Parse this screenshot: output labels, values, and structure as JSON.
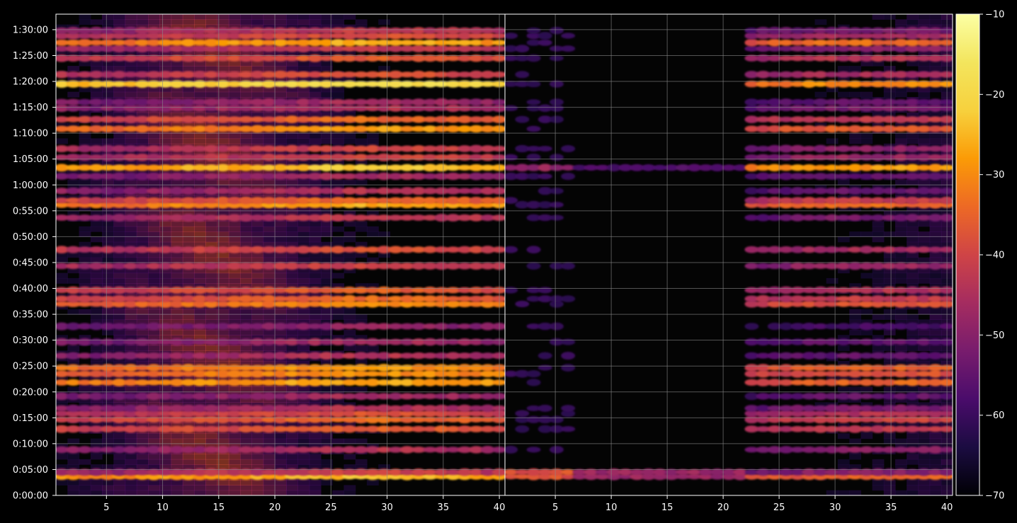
{
  "chart_data": {
    "type": "heatmap",
    "title": "",
    "xlabel": "",
    "ylabel": "",
    "background": "#000000",
    "grid": true,
    "grid_color": "#8a8a8a",
    "colormap": "inferno",
    "panels": [
      {
        "name": "left",
        "xlim": [
          1,
          40
        ],
        "xticks": [
          5,
          10,
          15,
          20,
          25,
          30,
          35,
          40
        ]
      },
      {
        "name": "right",
        "xlim": [
          1,
          40
        ],
        "xticks": [
          5,
          10,
          15,
          20,
          25,
          30,
          35,
          40
        ]
      }
    ],
    "y_axis": {
      "unit": "h:mm:ss",
      "ylim_seconds": [
        0,
        5580
      ],
      "tick_labels": [
        "0:00:00",
        "0:05:00",
        "0:10:00",
        "0:15:00",
        "0:20:00",
        "0:25:00",
        "0:30:00",
        "0:35:00",
        "0:40:00",
        "0:45:00",
        "0:50:00",
        "0:55:00",
        "1:00:00",
        "1:05:00",
        "1:10:00",
        "1:15:00",
        "1:20:00",
        "1:25:00",
        "1:30:00"
      ]
    },
    "colorbar": {
      "vmin": -70,
      "vmax": -10,
      "tick_values": [
        -70,
        -60,
        -50,
        -40,
        -30,
        -20,
        -10
      ],
      "tick_labels": [
        "−70",
        "−60",
        "−50",
        "−40",
        "−30",
        "−20",
        "−10"
      ]
    },
    "bands": [
      {
        "t": 220,
        "left": -28,
        "right": -35
      },
      {
        "t": 270,
        "left": -45,
        "right": -50
      },
      {
        "t": 530,
        "left": -48,
        "right": -50
      },
      {
        "t": 770,
        "left": -40,
        "right": -42
      },
      {
        "t": 880,
        "left": -38,
        "right": -40
      },
      {
        "t": 950,
        "left": -42,
        "right": -44
      },
      {
        "t": 1010,
        "left": -48,
        "right": -52
      },
      {
        "t": 1150,
        "left": -50,
        "right": -55
      },
      {
        "t": 1310,
        "left": -30,
        "right": -35
      },
      {
        "t": 1410,
        "left": -33,
        "right": -38
      },
      {
        "t": 1480,
        "left": -32,
        "right": -36
      },
      {
        "t": 1620,
        "left": -48,
        "right": -55
      },
      {
        "t": 1780,
        "left": -50,
        "right": -55
      },
      {
        "t": 1960,
        "left": -52,
        "right": -58
      },
      {
        "t": 2220,
        "left": -34,
        "right": -38
      },
      {
        "t": 2280,
        "left": -38,
        "right": -42
      },
      {
        "t": 2380,
        "left": -40,
        "right": -44
      },
      {
        "t": 2660,
        "left": -44,
        "right": -48
      },
      {
        "t": 2850,
        "left": -42,
        "right": -46
      },
      {
        "t": 3220,
        "left": -46,
        "right": -52
      },
      {
        "t": 3370,
        "left": -30,
        "right": -34
      },
      {
        "t": 3420,
        "left": -38,
        "right": -42
      },
      {
        "t": 3530,
        "left": -48,
        "right": -54
      },
      {
        "t": 3700,
        "left": -50,
        "right": -55
      },
      {
        "t": 3800,
        "left": -26,
        "right": -28
      },
      {
        "t": 3920,
        "left": -44,
        "right": -48
      },
      {
        "t": 4020,
        "left": -44,
        "right": -50
      },
      {
        "t": 4250,
        "left": -32,
        "right": -36
      },
      {
        "t": 4360,
        "left": -38,
        "right": -42
      },
      {
        "t": 4490,
        "left": -48,
        "right": -52
      },
      {
        "t": 4560,
        "left": -50,
        "right": -55
      },
      {
        "t": 4770,
        "left": -22,
        "right": -30
      },
      {
        "t": 4880,
        "left": -42,
        "right": -46
      },
      {
        "t": 5070,
        "left": -40,
        "right": -44
      },
      {
        "t": 5180,
        "left": -46,
        "right": -50
      },
      {
        "t": 5250,
        "left": -30,
        "right": -34
      },
      {
        "t": 5330,
        "left": -42,
        "right": -46
      },
      {
        "t": 5390,
        "left": -46,
        "right": -52
      }
    ]
  }
}
